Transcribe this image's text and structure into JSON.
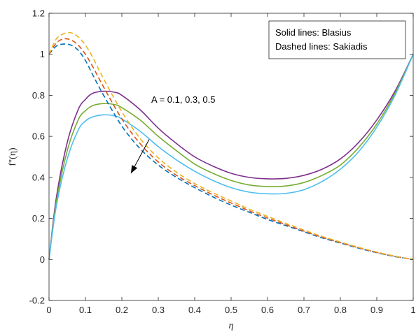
{
  "chart_data": {
    "type": "line",
    "title": "",
    "xlabel": "η",
    "ylabel": "f''(η)",
    "xlim": [
      0,
      1
    ],
    "ylim": [
      -0.2,
      1.2
    ],
    "xticks": [
      0,
      0.1,
      0.2,
      0.3,
      0.4,
      0.5,
      0.6,
      0.7,
      0.8,
      0.9,
      1
    ],
    "xtick_labels": [
      "0",
      "0.1",
      "0.2",
      "0.3",
      "0.4",
      "0.5",
      "0.6",
      "0.7",
      "0.8",
      "0.9",
      "1"
    ],
    "yticks": [
      -0.2,
      0,
      0.2,
      0.4,
      0.6,
      0.8,
      1,
      1.2
    ],
    "ytick_labels": [
      "-0.2",
      "0",
      "0.2",
      "0.4",
      "0.6",
      "0.8",
      "1",
      "1.2"
    ],
    "grid": false,
    "legend": {
      "placement": "top-right",
      "lines": [
        "Solid lines: Blasius",
        "Dashed lines: Sakiadis"
      ]
    },
    "annotation": {
      "text": "A = 0.1, 0.3, 0.5",
      "arrow_from": [
        0.275,
        0.585
      ],
      "arrow_to": [
        0.225,
        0.42
      ]
    },
    "series": [
      {
        "style": "solid",
        "color": "#7E2F8E",
        "x": [
          0,
          0.02,
          0.05,
          0.08,
          0.1,
          0.12,
          0.15,
          0.18,
          0.2,
          0.25,
          0.3,
          0.35,
          0.4,
          0.45,
          0.5,
          0.55,
          0.6,
          0.65,
          0.7,
          0.75,
          0.8,
          0.85,
          0.9,
          0.95,
          1
        ],
        "y": [
          0,
          0.3,
          0.57,
          0.73,
          0.78,
          0.81,
          0.82,
          0.815,
          0.8,
          0.73,
          0.64,
          0.565,
          0.5,
          0.455,
          0.42,
          0.4,
          0.393,
          0.395,
          0.41,
          0.44,
          0.49,
          0.57,
          0.68,
          0.82,
          1
        ]
      },
      {
        "style": "solid",
        "color": "#77AC30",
        "x": [
          0,
          0.02,
          0.05,
          0.08,
          0.1,
          0.12,
          0.15,
          0.18,
          0.2,
          0.25,
          0.3,
          0.35,
          0.4,
          0.45,
          0.5,
          0.55,
          0.6,
          0.65,
          0.7,
          0.75,
          0.8,
          0.85,
          0.9,
          0.95,
          1
        ],
        "y": [
          0,
          0.28,
          0.53,
          0.68,
          0.725,
          0.75,
          0.76,
          0.755,
          0.74,
          0.68,
          0.6,
          0.53,
          0.465,
          0.42,
          0.385,
          0.363,
          0.355,
          0.358,
          0.375,
          0.41,
          0.46,
          0.545,
          0.66,
          0.81,
          1
        ]
      },
      {
        "style": "solid",
        "color": "#4DBEEE",
        "x": [
          0,
          0.02,
          0.05,
          0.08,
          0.1,
          0.12,
          0.15,
          0.18,
          0.2,
          0.25,
          0.3,
          0.35,
          0.4,
          0.45,
          0.5,
          0.55,
          0.6,
          0.65,
          0.7,
          0.75,
          0.8,
          0.85,
          0.9,
          0.95,
          1
        ],
        "y": [
          0,
          0.26,
          0.49,
          0.63,
          0.675,
          0.695,
          0.705,
          0.7,
          0.685,
          0.625,
          0.55,
          0.485,
          0.43,
          0.385,
          0.35,
          0.328,
          0.32,
          0.322,
          0.34,
          0.38,
          0.44,
          0.525,
          0.645,
          0.8,
          1
        ]
      },
      {
        "style": "dashed",
        "color": "#0072BD",
        "x": [
          0,
          0.02,
          0.04,
          0.06,
          0.08,
          0.1,
          0.12,
          0.15,
          0.2,
          0.25,
          0.3,
          0.35,
          0.4,
          0.45,
          0.5,
          0.55,
          0.6,
          0.65,
          0.7,
          0.75,
          0.8,
          0.85,
          0.9,
          0.95,
          1
        ],
        "y": [
          1,
          1.04,
          1.05,
          1.045,
          1.02,
          0.97,
          0.9,
          0.8,
          0.65,
          0.54,
          0.46,
          0.4,
          0.35,
          0.305,
          0.265,
          0.23,
          0.195,
          0.165,
          0.135,
          0.105,
          0.08,
          0.055,
          0.033,
          0.014,
          0
        ]
      },
      {
        "style": "dashed",
        "color": "#D95319",
        "x": [
          0,
          0.02,
          0.04,
          0.06,
          0.08,
          0.1,
          0.12,
          0.15,
          0.2,
          0.25,
          0.3,
          0.35,
          0.4,
          0.45,
          0.5,
          0.55,
          0.6,
          0.65,
          0.7,
          0.75,
          0.8,
          0.85,
          0.9,
          0.95,
          1
        ],
        "y": [
          1,
          1.055,
          1.075,
          1.07,
          1.045,
          1.0,
          0.94,
          0.84,
          0.685,
          0.565,
          0.475,
          0.41,
          0.36,
          0.315,
          0.275,
          0.237,
          0.202,
          0.17,
          0.138,
          0.108,
          0.082,
          0.057,
          0.034,
          0.015,
          0
        ]
      },
      {
        "style": "dashed",
        "color": "#EDB120",
        "x": [
          0,
          0.02,
          0.04,
          0.06,
          0.08,
          0.1,
          0.12,
          0.15,
          0.2,
          0.25,
          0.3,
          0.35,
          0.4,
          0.45,
          0.5,
          0.55,
          0.6,
          0.65,
          0.7,
          0.75,
          0.8,
          0.85,
          0.9,
          0.95,
          1
        ],
        "y": [
          1,
          1.075,
          1.1,
          1.105,
          1.085,
          1.045,
          0.985,
          0.88,
          0.72,
          0.59,
          0.495,
          0.425,
          0.37,
          0.325,
          0.285,
          0.245,
          0.21,
          0.176,
          0.143,
          0.112,
          0.085,
          0.059,
          0.036,
          0.016,
          0
        ]
      }
    ]
  }
}
